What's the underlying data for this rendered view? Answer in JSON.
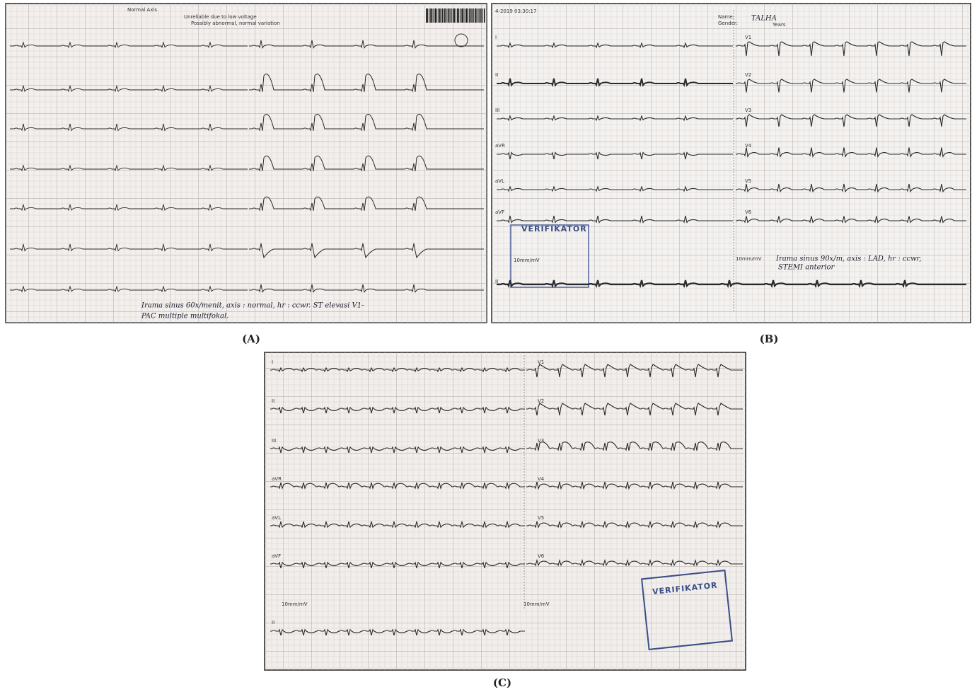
{
  "panels": [
    {
      "label": "(A)",
      "header": [
        "Normal Axis",
        "Unreliable due to low voltage",
        "Possibly abnormal, normal variation"
      ],
      "notes": [
        "Irama sinus 60x/menit, axis : normal, hr : ccwr. ST elevasi V1-",
        "PAC multiple multifokal."
      ]
    },
    {
      "label": "(B)",
      "header": [
        "4-2019  03:30:17",
        "Name:",
        "Gender:",
        "TALHA",
        "Years"
      ],
      "left_leads": [
        "I",
        "II",
        "III",
        "aVR",
        "aVL",
        "aVF"
      ],
      "right_leads": [
        "V1",
        "V2",
        "V3",
        "V4",
        "V5",
        "V6"
      ],
      "rhythm_lead": "II",
      "stamp": "VERIFIKATOR",
      "calibration": "10mm/mV",
      "notes": [
        "Irama sinus 90x/m, axis : LAD, hr : ccwr,",
        "STEMI anterior"
      ]
    },
    {
      "label": "(C)",
      "left_leads": [
        "I",
        "II",
        "III",
        "aVR",
        "aVL",
        "aVF"
      ],
      "right_leads": [
        "V1",
        "V2",
        "V3",
        "V4",
        "V5",
        "V6"
      ],
      "rhythm_lead": "II",
      "stamp": "VERIFIKATOR",
      "calibration": "10mm/mV"
    }
  ]
}
